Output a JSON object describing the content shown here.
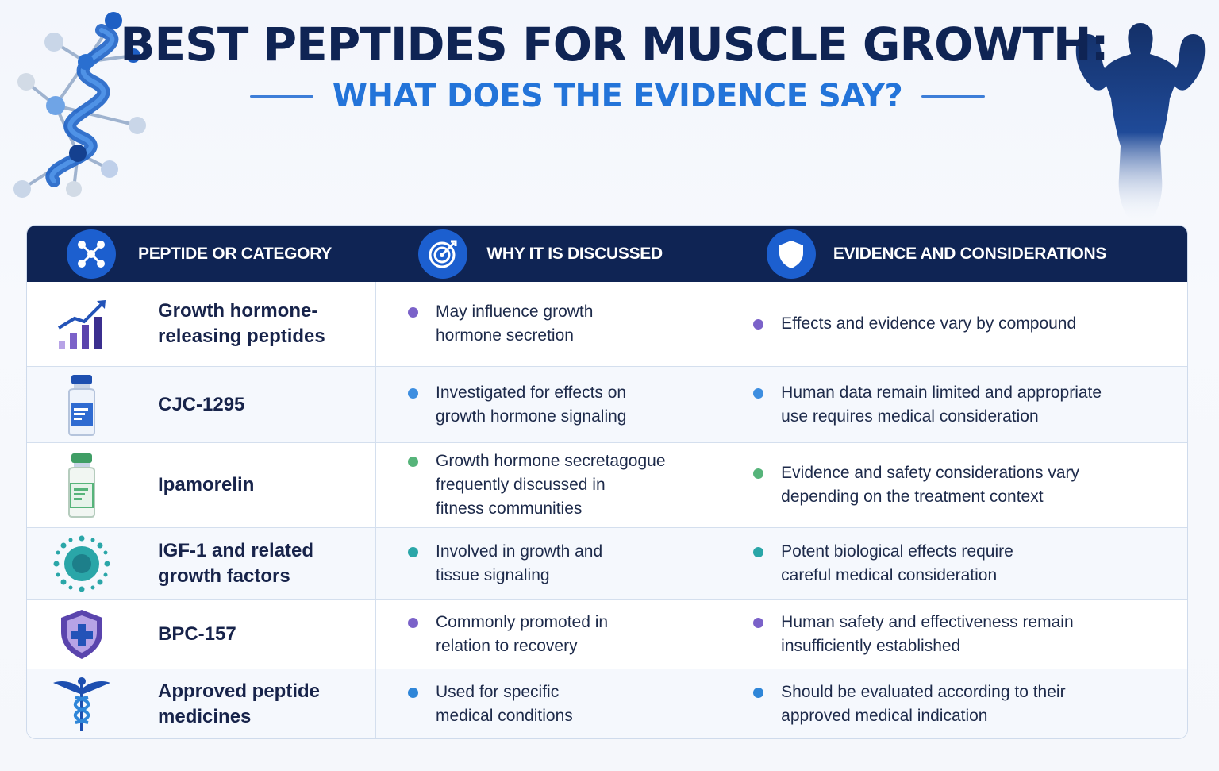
{
  "header": {
    "title": "BEST PEPTIDES FOR MUSCLE GROWTH:",
    "subtitle": "WHAT DOES THE EVIDENCE SAY?"
  },
  "table": {
    "columns": [
      {
        "label": "PEPTIDE OR CATEGORY",
        "icon": "network-icon"
      },
      {
        "label": "WHY IT IS DISCUSSED",
        "icon": "target-icon"
      },
      {
        "label": "EVIDENCE AND CONSIDERATIONS",
        "icon": "shield-icon"
      }
    ],
    "rows": [
      {
        "name": "Growth hormone-\nreleasing peptides",
        "icon": "growth-chart-icon",
        "dot_color": "#7b62c9",
        "why": "May influence growth\nhormone secretion",
        "evidence": "Effects and evidence vary by compound"
      },
      {
        "name": "CJC-1295",
        "icon": "blue-vial-icon",
        "dot_color": "#3d8ee0",
        "why": "Investigated for effects on\ngrowth hormone signaling",
        "evidence": "Human data remain limited and appropriate\nuse requires medical consideration"
      },
      {
        "name": "Ipamorelin",
        "icon": "green-vial-icon",
        "dot_color": "#56b47a",
        "why": "Growth hormone secretagogue\nfrequently discussed in\nfitness communities",
        "evidence": "Evidence and safety considerations vary\ndepending on the treatment context"
      },
      {
        "name": "IGF-1 and related\ngrowth factors",
        "icon": "cell-icon",
        "dot_color": "#2aa6a8",
        "why": "Involved in growth and\ntissue signaling",
        "evidence": "Potent biological effects require\ncareful medical consideration"
      },
      {
        "name": "BPC-157",
        "icon": "medical-shield-icon",
        "dot_color": "#7b62c9",
        "why": "Commonly promoted in\nrelation to recovery",
        "evidence": "Human safety and effectiveness remain\ninsufficiently established"
      },
      {
        "name": "Approved peptide\nmedicines",
        "icon": "caduceus-icon",
        "dot_color": "#2f86d8",
        "why": "Used for specific\nmedical conditions",
        "evidence": "Should be evaluated according to their\napproved medical indication"
      }
    ]
  }
}
